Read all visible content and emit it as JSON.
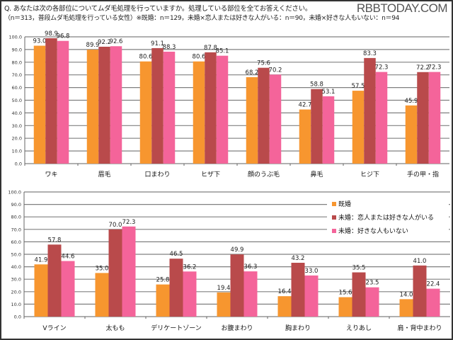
{
  "header": {
    "question": "Q. あなたは次の各部位についてムダ毛処理を行っていますか。処理している部位を全てお答えください。",
    "sample_note": "（n＝313，普段ムダ毛処理を行っている女性）※既婚：n＝129，未婚×恋人または好きな人がいる：n＝90，未婚×好きな人もいない：n＝94",
    "brand": "RBBTODAY.COM"
  },
  "colors": {
    "married": "#F7962F",
    "single_partner": "#B94A4B",
    "single_none": "#F4649A",
    "grid": "#808080"
  },
  "chart_data": [
    {
      "type": "bar",
      "title": "",
      "ylim": [
        0,
        100
      ],
      "yticks": [
        "0.0",
        "10.0",
        "20.0",
        "30.0",
        "40.0",
        "50.0",
        "60.0",
        "70.0",
        "80.0",
        "90.0",
        "100.0"
      ],
      "categories": [
        "ワキ",
        "眉毛",
        "口まわり",
        "ヒザ下",
        "顔のうぶ毛",
        "鼻毛",
        "ヒジ下",
        "手の甲・指"
      ],
      "series": [
        {
          "name": "既婚",
          "values": [
            93.0,
            89.9,
            80.6,
            80.6,
            68.2,
            42.7,
            57.5,
            45.9
          ]
        },
        {
          "name": "未婚：恋人または好きな人がいる",
          "values": [
            98.9,
            92.2,
            91.1,
            87.8,
            75.6,
            58.8,
            83.3,
            72.2
          ]
        },
        {
          "name": "未婚：好きな人もいない",
          "values": [
            96.8,
            92.6,
            88.3,
            85.1,
            70.2,
            53.1,
            72.3,
            72.3
          ]
        }
      ],
      "grid": true
    },
    {
      "type": "bar",
      "title": "",
      "ylim": [
        0,
        100
      ],
      "yticks": [
        "0.0",
        "10.0",
        "20.0",
        "30.0",
        "40.0",
        "50.0",
        "60.0",
        "70.0",
        "80.0",
        "90.0",
        "100.0"
      ],
      "categories": [
        "Vライン",
        "太もも",
        "デリケートゾーン",
        "お腹まわり",
        "胸まわり",
        "えりあし",
        "肩・背中まわり"
      ],
      "series": [
        {
          "name": "既婚",
          "values": [
            41.9,
            35.0,
            25.8,
            19.4,
            16.4,
            15.6,
            14.0
          ]
        },
        {
          "name": "未婚：恋人または好きな人がいる",
          "values": [
            57.8,
            70.0,
            46.5,
            49.9,
            43.2,
            35.5,
            41.0
          ]
        },
        {
          "name": "未婚：好きな人もいない",
          "values": [
            44.6,
            72.3,
            36.2,
            36.3,
            33.0,
            23.5,
            22.4
          ]
        }
      ],
      "grid": true,
      "legend": "top-right"
    }
  ]
}
